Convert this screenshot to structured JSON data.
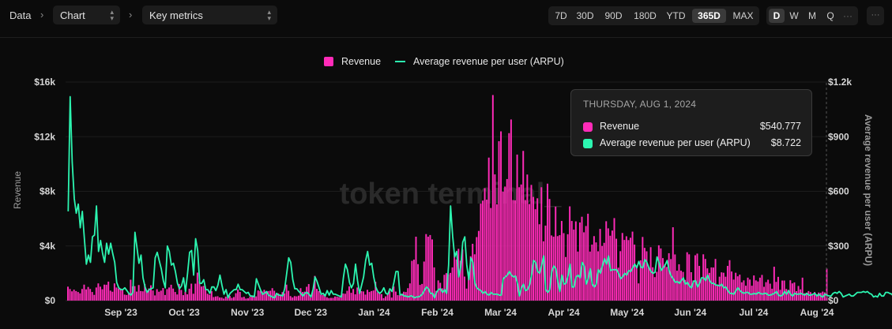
{
  "breadcrumb": {
    "root": "Data",
    "view_select": "Chart",
    "metric_select": "Key metrics"
  },
  "ranges": {
    "items": [
      "7D",
      "30D",
      "90D",
      "180D",
      "YTD",
      "365D",
      "MAX"
    ],
    "active": "365D"
  },
  "granularity": {
    "items": [
      "D",
      "W",
      "M",
      "Q"
    ],
    "active": "D"
  },
  "watermark": "token terminal_",
  "chart_data": {
    "type": "bar",
    "series": [
      {
        "name": "Revenue",
        "type": "bar",
        "axis": "left",
        "color": "#ff2bb8",
        "values": [
          1020,
          850,
          680,
          800,
          700,
          630,
          530,
          850,
          1170,
          820,
          1000,
          850,
          630,
          420,
          960,
          1260,
          1020,
          830,
          1170,
          1160,
          1390,
          730,
          650,
          1260,
          960,
          880,
          890,
          780,
          440,
          410,
          580,
          1530,
          1040,
          1060,
          660,
          1140,
          700,
          680,
          1210,
          740,
          890,
          1120,
          740,
          380,
          840,
          650,
          730,
          920,
          410,
          840,
          960,
          1160,
          880,
          630,
          450,
          1220,
          780,
          400,
          650,
          460,
          870,
          1240,
          500,
          1240,
          2050,
          1420,
          1030,
          1070,
          870,
          500,
          430,
          690,
          260,
          300,
          320,
          230,
          220,
          150,
          290,
          410,
          340,
          200,
          260,
          540,
          820,
          640,
          240,
          280,
          150,
          170,
          280,
          340,
          380,
          310,
          740,
          690,
          660,
          790,
          580,
          700,
          720,
          910,
          720,
          450,
          530,
          350,
          620,
          520,
          1170,
          720,
          330,
          230,
          330,
          310,
          360,
          910,
          630,
          660,
          1010,
          1210,
          240,
          750,
          1810,
          860,
          700,
          440,
          420,
          470,
          240,
          180,
          200,
          200,
          300,
          290,
          250,
          390,
          520,
          500,
          720,
          1040,
          570,
          850,
          460,
          960,
          610,
          690,
          670,
          440,
          790,
          630,
          700,
          740,
          1380,
          610,
          530,
          470,
          180,
          310,
          470,
          680,
          220,
          1030,
          660,
          400,
          390,
          480,
          650,
          630,
          910,
          1260,
          2910,
          3000,
          4680,
          2670,
          1150,
          1220,
          2860,
          4870,
          4680,
          4800,
          4480,
          2430,
          720,
          1480,
          1300,
          900,
          1890,
          2010,
          1920,
          2030,
          2430,
          3520,
          3010,
          3790,
          2920,
          3740,
          1760,
          880,
          2110,
          3250,
          4160,
          3390,
          4650,
          5100,
          7100,
          7320,
          8230,
          7390,
          10470,
          6780,
          15050,
          9240,
          7050,
          11670,
          12390,
          7980,
          8350,
          8900,
          12260,
          13260,
          7360,
          7340,
          10690,
          8300,
          8500,
          10960,
          7360,
          9230,
          7070,
          8470,
          7590,
          6690,
          7490,
          5590,
          8300,
          4340,
          5490,
          8560,
          7440,
          4770,
          4680,
          6880,
          4720,
          4790,
          5830,
          4940,
          3190,
          4860,
          6900,
          5830,
          5200,
          5800,
          3590,
          5720,
          6140,
          5000,
          5460,
          6360,
          3590,
          4100,
          4720,
          4260,
          3610,
          5250,
          4000,
          4230,
          5810,
          5290,
          4750,
          5130,
          6040,
          4530,
          2410,
          3620,
          4950,
          4440,
          4710,
          4430,
          4600,
          5050,
          4100,
          2580,
          1260,
          2950,
          4660,
          3860,
          3610,
          2460,
          3910,
          2440,
          1720,
          2110,
          4050,
          3820,
          3110,
          2670,
          2460,
          3470,
          3040,
          5370,
          3380,
          2190,
          2660,
          2190,
          2100,
          1510,
          3540,
          3390,
          2080,
          1480,
          3320,
          3440,
          2540,
          1560,
          3390,
          3050,
          2360,
          2030,
          2430,
          2420,
          3050,
          1180,
          1750,
          2070,
          2040,
          1750,
          2540,
          2960,
          2130,
          1540,
          2040,
          1780,
          1900,
          1340,
          1480,
          1090,
          1680,
          1540,
          1090,
          1840,
          1480,
          1400,
          1680,
          1880,
          1010,
          1350,
          1530,
          1240,
          870,
          2480,
          1370,
          1740,
          790,
          1470,
          1470,
          850,
          780,
          1490,
          1260,
          1330,
          690,
          1070,
          820,
          1680,
          540,
          580,
          700,
          620,
          400,
          630,
          460,
          590,
          570,
          660,
          600,
          2340
        ]
      },
      {
        "name": "Average revenue per user (ARPU)",
        "type": "line",
        "axis": "right",
        "color": "#2cf5b0",
        "values": [
          490,
          1120,
          760,
          560,
          480,
          530,
          400,
          490,
          340,
          200,
          250,
          210,
          350,
          360,
          520,
          270,
          330,
          260,
          210,
          315,
          255,
          315,
          260,
          210,
          100,
          70,
          60,
          60,
          70,
          55,
          40,
          30,
          45,
          375,
          290,
          205,
          250,
          125,
          75,
          45,
          60,
          65,
          70,
          235,
          265,
          220,
          175,
          110,
          70,
          300,
          270,
          195,
          205,
          160,
          95,
          65,
          80,
          125,
          50,
          150,
          265,
          275,
          140,
          340,
          275,
          95,
          95,
          115,
          60,
          60,
          40,
          75,
          75,
          55,
          85,
          140,
          85,
          35,
          60,
          15,
          40,
          50,
          60,
          60,
          90,
          60,
          60,
          50,
          40,
          45,
          25,
          25,
          20,
          120,
          90,
          60,
          35,
          40,
          50,
          30,
          25,
          20,
          15,
          40,
          30,
          30,
          25,
          65,
          150,
          235,
          210,
          115,
          65,
          65,
          50,
          40,
          25,
          40,
          45,
          35,
          20,
          60,
          130,
          105,
          70,
          35,
          40,
          25,
          55,
          30,
          55,
          35,
          35,
          30,
          25,
          20,
          125,
          200,
          170,
          100,
          70,
          95,
          200,
          110,
          40,
          85,
          130,
          220,
          270,
          195,
          205,
          130,
          75,
          50,
          40,
          50,
          70,
          40,
          35,
          65,
          50,
          100,
          160,
          160,
          30,
          35,
          25,
          25,
          20,
          25,
          25,
          15,
          20,
          20,
          25,
          35,
          55,
          75,
          65,
          40,
          40,
          15,
          45,
          60,
          65,
          45,
          60,
          40,
          195,
          520,
          355,
          240,
          270,
          130,
          185,
          320,
          350,
          195,
          115,
          235,
          210,
          95,
          70,
          60,
          55,
          40,
          50,
          35,
          30,
          45,
          35,
          35,
          35,
          30,
          30,
          120,
          130,
          140,
          160,
          140,
          130,
          135,
          95,
          25,
          70,
          90,
          55,
          60,
          85,
          140,
          220,
          210,
          160,
          150,
          195,
          245,
          60,
          45,
          60,
          160,
          190,
          175,
          105,
          50,
          140,
          90,
          95,
          135,
          200,
          75,
          75,
          130,
          140,
          125,
          210,
          190,
          90,
          120,
          175,
          90,
          75,
          90,
          170,
          150,
          190,
          230,
          200,
          245,
          165,
          170,
          170,
          170,
          150,
          120,
          130,
          150,
          140,
          165,
          160,
          180,
          200,
          180,
          215,
          185,
          180,
          225,
          210,
          180,
          160,
          150,
          155,
          240,
          210,
          165,
          180,
          195,
          220,
          165,
          135,
          120,
          100,
          105,
          95,
          110,
          125,
          90,
          100,
          80,
          70,
          105,
          110,
          75,
          95,
          125,
          125,
          110,
          140,
          110,
          95,
          95,
          85,
          85,
          80,
          90,
          70,
          75,
          55,
          40,
          40,
          35,
          55,
          70,
          55,
          45,
          40,
          45,
          45,
          35,
          35,
          40,
          35,
          45,
          40,
          35,
          40,
          40,
          30,
          30,
          35,
          40,
          50,
          30,
          25,
          30,
          50,
          35,
          55,
          35,
          25,
          40,
          35,
          35,
          40,
          35,
          30,
          40,
          30,
          30,
          35,
          40,
          25,
          35,
          25,
          20,
          35,
          30,
          25,
          25,
          40,
          45,
          40,
          50,
          40,
          20,
          25,
          30,
          35,
          25,
          25,
          35,
          45,
          45,
          45,
          50,
          45,
          50,
          40,
          35,
          20,
          25,
          20,
          40,
          25,
          25,
          45,
          45,
          40,
          35,
          20,
          25,
          30,
          15,
          25,
          25,
          15,
          10,
          20,
          20
        ]
      }
    ],
    "x_tick_labels": [
      "Sep '23",
      "Oct '23",
      "Nov '23",
      "Dec '23",
      "Jan '24",
      "Feb '24",
      "Mar '24",
      "Apr '24",
      "May '24",
      "Jun '24",
      "Jul '24",
      "Aug '24"
    ],
    "y_left": {
      "label": "Revenue",
      "ticks": [
        "$0",
        "$4k",
        "$8k",
        "$12k",
        "$16k"
      ],
      "range": [
        0,
        16000
      ]
    },
    "y_right": {
      "label": "Average revenue per user (ARPU)",
      "ticks": [
        "$0",
        "$300",
        "$600",
        "$900",
        "$1.2k"
      ],
      "range": [
        0,
        1200
      ]
    },
    "legend": {
      "position": "top-center"
    },
    "tooltip": {
      "date": "THURSDAY, AUG 1, 2024",
      "rows": [
        {
          "name": "Revenue",
          "value": "$540.777",
          "color": "#ff2bb8"
        },
        {
          "name": "Average revenue per user (ARPU)",
          "value": "$8.722",
          "color": "#2cf5b0"
        }
      ]
    }
  }
}
